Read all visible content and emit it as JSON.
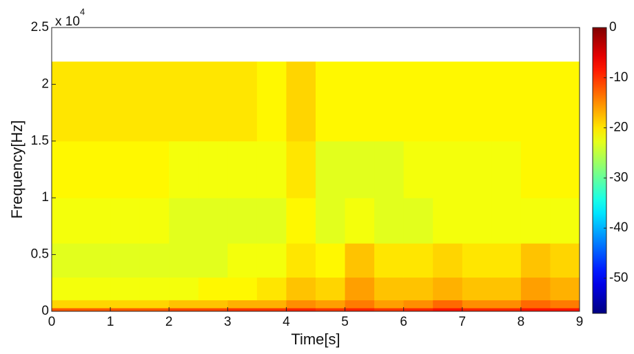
{
  "chart_data": {
    "type": "spectrogram",
    "x_label": "Time[s]",
    "y_label": "Frequency[Hz]",
    "y_multiplier": {
      "base": "x 10",
      "power": "4"
    },
    "x_bins": [
      0,
      0.5,
      1,
      1.5,
      2,
      2.5,
      3,
      3.5,
      4,
      4.5,
      5,
      5.5,
      6,
      6.5,
      7,
      7.5,
      8,
      8.5,
      9
    ],
    "y_bins": [
      0,
      0.03,
      0.1,
      0.3,
      0.6,
      1,
      1.5,
      2.2
    ],
    "values": [
      [
        -12,
        -12,
        -12,
        -12,
        -11,
        -11,
        -10,
        -10,
        -9,
        -10,
        -9,
        -10,
        -9,
        -8,
        -9,
        -9,
        -8,
        -8
      ],
      [
        -19,
        -19,
        -19,
        -19,
        -18,
        -18,
        -17,
        -17,
        -15,
        -16,
        -14,
        -16,
        -15,
        -13,
        -15,
        -15,
        -13,
        -14
      ],
      [
        -22,
        -22,
        -22,
        -22,
        -22,
        -21,
        -21,
        -20,
        -18,
        -19,
        -16,
        -18,
        -18,
        -17,
        -18,
        -18,
        -16,
        -17
      ],
      [
        -23,
        -23,
        -23,
        -23,
        -23,
        -23,
        -22,
        -22,
        -20,
        -21,
        -18,
        -20,
        -20,
        -19,
        -20,
        -20,
        -18,
        -19
      ],
      [
        -22,
        -22,
        -22,
        -22,
        -23,
        -23,
        -23,
        -23,
        -21,
        -23,
        -22,
        -23,
        -23,
        -22,
        -22,
        -22,
        -22,
        -22
      ],
      [
        -21,
        -21,
        -21,
        -21,
        -22,
        -22,
        -22,
        -22,
        -20,
        -23,
        -23,
        -23,
        -22,
        -22,
        -22,
        -22,
        -21,
        -21
      ],
      [
        -20,
        -20,
        -20,
        -20,
        -20,
        -20,
        -20,
        -21,
        -19,
        -21,
        -21,
        -21,
        -21,
        -21,
        -21,
        -21,
        -21,
        -21
      ]
    ],
    "xlim": [
      0,
      9
    ],
    "xticks": [
      0,
      1,
      2,
      3,
      4,
      5,
      6,
      7,
      8,
      9
    ],
    "ylim": [
      0,
      2.5
    ],
    "yticks": [
      0,
      0.5,
      1,
      1.5,
      2,
      2.5
    ],
    "colormap": "jet",
    "clim": [
      -57,
      0
    ],
    "colorbar_ticks": [
      0,
      -10,
      -20,
      -30,
      -40,
      -50
    ]
  }
}
